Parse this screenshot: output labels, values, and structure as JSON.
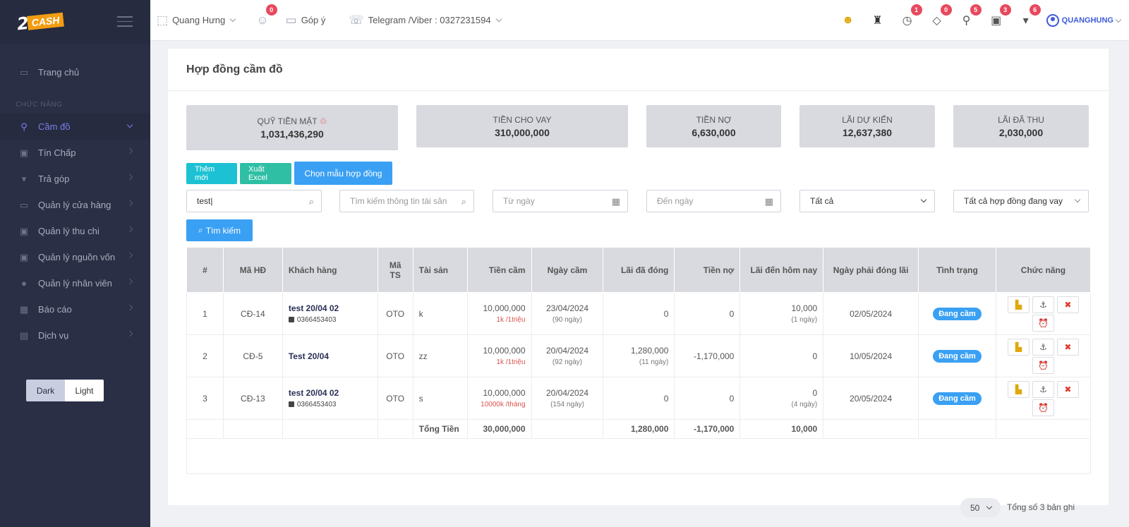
{
  "logo": {
    "two": "2",
    "cash": "CASH"
  },
  "sidebar": {
    "home": "Trang chủ",
    "section": "CHỨC NĂNG",
    "items": [
      {
        "label": "Cầm đồ"
      },
      {
        "label": "Tín Chấp"
      },
      {
        "label": "Trả góp"
      },
      {
        "label": "Quản lý cửa hàng"
      },
      {
        "label": "Quản lý thu chi"
      },
      {
        "label": "Quản lý nguồn vốn"
      },
      {
        "label": "Quản lý nhân viên"
      },
      {
        "label": "Báo cáo"
      },
      {
        "label": "Dịch vụ"
      }
    ],
    "theme": {
      "dark": "Dark",
      "light": "Light"
    }
  },
  "topbar": {
    "store": "Quang Hưng",
    "users_badge": "0",
    "feedback": "Góp ý",
    "contact": "Telegram /Viber : 0327231594",
    "badges": [
      "1",
      "0",
      "5",
      "3",
      "6"
    ],
    "username": "QUANGHUNG"
  },
  "page": {
    "title": "Hợp đồng cầm đồ"
  },
  "stats": [
    {
      "label": "QUỸ TIỀN MẶT",
      "value": "1,031,436,290"
    },
    {
      "label": "TIỀN CHO VAY",
      "value": "310,000,000"
    },
    {
      "label": "TIỀN NỢ",
      "value": "6,630,000"
    },
    {
      "label": "LÃI DỰ KIẾN",
      "value": "12,637,380"
    },
    {
      "label": "LÃI ĐÃ THU",
      "value": "2,030,000"
    }
  ],
  "buttons": {
    "add": "Thêm mới",
    "excel": "Xuất Excel",
    "template": "Chọn mẫu hợp đồng",
    "search": "Tìm kiếm"
  },
  "filters": {
    "keyword": "test",
    "asset_placeholder": "Tìm kiếm thông tin tài sản",
    "from_placeholder": "Từ ngày",
    "to_placeholder": "Đến ngày",
    "status": "Tất cả",
    "contract_type": "Tất cả hợp đồng đang vay"
  },
  "table": {
    "headers": [
      "#",
      "Mã HĐ",
      "Khách hàng",
      "Mã TS",
      "Tài sản",
      "Tiền cầm",
      "Ngày cầm",
      "Lãi đã đóng",
      "Tiền nợ",
      "Lãi đến hôm nay",
      "Ngày phải đóng lãi",
      "Tình trạng",
      "Chức năng"
    ],
    "rows": [
      {
        "no": "1",
        "code": "CĐ-14",
        "customer": "test 20/04 02",
        "phone": "0366453403",
        "asset_code": "OTO",
        "asset": "k",
        "amount": "10,000,000",
        "rate": "1k /1triệu",
        "date": "23/04/2024",
        "days": "(90 ngày)",
        "paid": "0",
        "paid_sub": "",
        "debt": "0",
        "interest": "10,000",
        "interest_sub": "(1 ngày)",
        "due": "02/05/2024",
        "status": "Đang cầm"
      },
      {
        "no": "2",
        "code": "CĐ-5",
        "customer": "Test 20/04",
        "phone": "",
        "asset_code": "OTO",
        "asset": "zz",
        "amount": "10,000,000",
        "rate": "1k /1triệu",
        "date": "20/04/2024",
        "days": "(92 ngày)",
        "paid": "1,280,000",
        "paid_sub": "(11 ngày)",
        "debt": "-1,170,000",
        "interest": "0",
        "interest_sub": "",
        "due": "10/05/2024",
        "status": "Đang cầm"
      },
      {
        "no": "3",
        "code": "CĐ-13",
        "customer": "test 20/04 02",
        "phone": "0366453403",
        "asset_code": "OTO",
        "asset": "s",
        "amount": "10,000,000",
        "rate": "10000k /tháng",
        "date": "20/04/2024",
        "days": "(154 ngày)",
        "paid": "0",
        "paid_sub": "",
        "debt": "0",
        "interest": "0",
        "interest_sub": "(4 ngày)",
        "due": "20/05/2024",
        "status": "Đang cầm"
      }
    ],
    "total": {
      "label": "Tổng Tiền",
      "amount": "30,000,000",
      "paid": "1,280,000",
      "debt": "-1,170,000",
      "interest": "10,000"
    }
  },
  "pagination": {
    "per_page": "50",
    "total_text": "Tổng số 3 bản ghi"
  }
}
